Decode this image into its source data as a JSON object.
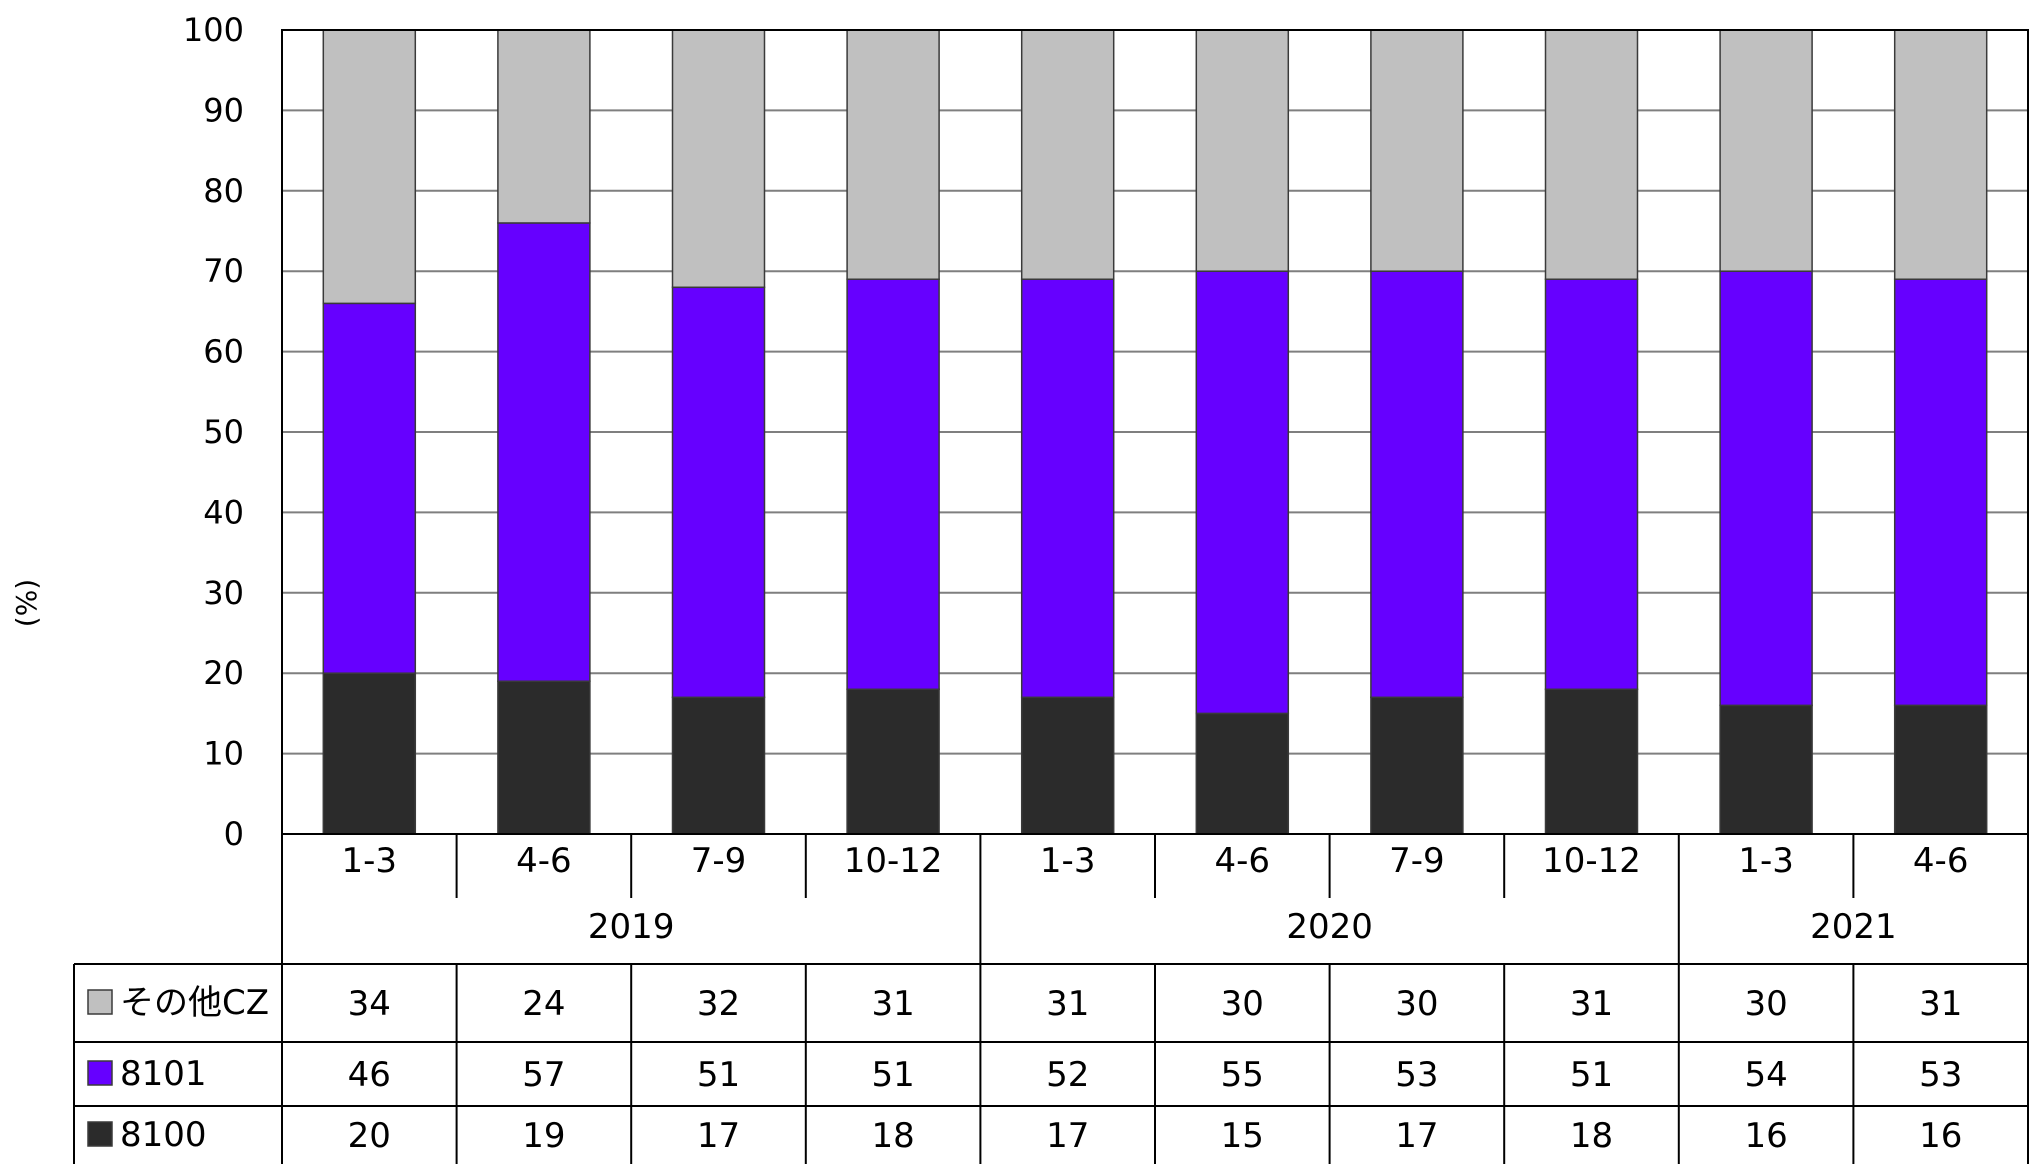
{
  "chart_data": {
    "type": "bar",
    "stacked": true,
    "ylabel": "(%)",
    "ylim": [
      0,
      100
    ],
    "yticks": [
      0,
      10,
      20,
      30,
      40,
      50,
      60,
      70,
      80,
      90,
      100
    ],
    "grid": true,
    "categories": [
      "1-3",
      "4-6",
      "7-9",
      "10-12",
      "1-3",
      "4-6",
      "7-9",
      "10-12",
      "1-3",
      "4-6"
    ],
    "groups": [
      {
        "label": "2019",
        "count": 4
      },
      {
        "label": "2020",
        "count": 4
      },
      {
        "label": "2021",
        "count": 2
      }
    ],
    "series": [
      {
        "name": "8100",
        "color": "#2b2b2b",
        "values": [
          20,
          19,
          17,
          18,
          17,
          15,
          17,
          18,
          16,
          16
        ]
      },
      {
        "name": "8101",
        "color": "#6600ff",
        "values": [
          46,
          57,
          51,
          51,
          52,
          55,
          53,
          51,
          54,
          53
        ]
      },
      {
        "name": "その他CZ",
        "color": "#c0c0c0",
        "values": [
          34,
          24,
          32,
          31,
          31,
          30,
          30,
          31,
          30,
          31
        ]
      }
    ],
    "table_rows_order": [
      "その他CZ",
      "8101",
      "8100"
    ]
  }
}
